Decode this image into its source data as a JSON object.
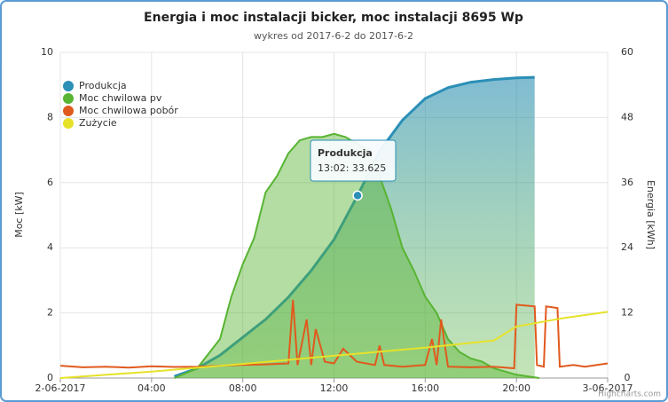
{
  "chart_data": {
    "type": "line",
    "title": "Energia i moc instalacji bicker, moc instalacji 8695 Wp",
    "subtitle": "wykres od 2017-6-2 do 2017-6-2",
    "y_label": "Moc [kW]",
    "y2_label": "Energia [kWh]",
    "xlim": [
      0,
      24
    ],
    "xticks": [
      {
        "value": 0,
        "label": "2-06-2017"
      },
      {
        "value": 4,
        "label": "04:00"
      },
      {
        "value": 8,
        "label": "08:00"
      },
      {
        "value": 12,
        "label": "12:00"
      },
      {
        "value": 16,
        "label": "16:00"
      },
      {
        "value": 20,
        "label": "20:00"
      },
      {
        "value": 24,
        "label": "3-06-2017"
      }
    ],
    "ylim": [
      0,
      10
    ],
    "yticks": [
      0,
      2,
      4,
      6,
      8,
      10
    ],
    "y2lim": [
      0,
      60
    ],
    "y2ticks": [
      0,
      12,
      24,
      36,
      48,
      60
    ],
    "grid": true,
    "legend": "top-left",
    "series": [
      {
        "name": "Produkcja",
        "color": "#2b8fb6",
        "axis": "y2",
        "area": true,
        "x": [
          5,
          6,
          7,
          8,
          9,
          10,
          11,
          12,
          13.0333,
          14,
          15,
          16,
          17,
          18,
          19,
          20,
          20.8
        ],
        "values": [
          0.3,
          1.8,
          4.2,
          7.5,
          10.8,
          14.9,
          19.8,
          25.5,
          33.625,
          41.8,
          47.5,
          51.5,
          53.5,
          54.5,
          55,
          55.3,
          55.4
        ]
      },
      {
        "name": "Moc chwilowa pv",
        "color": "#58b432",
        "axis": "y",
        "area": true,
        "x": [
          5,
          6,
          7,
          7.5,
          8,
          8.5,
          9,
          9.5,
          10,
          10.5,
          11,
          11.5,
          12,
          12.5,
          13,
          13.5,
          14,
          14.5,
          15,
          15.5,
          16,
          16.5,
          17,
          17.5,
          18,
          18.5,
          19,
          20,
          21
        ],
        "values": [
          0,
          0.3,
          1.2,
          2.5,
          3.5,
          4.3,
          5.7,
          6.2,
          6.9,
          7.3,
          7.4,
          7.4,
          7.5,
          7.4,
          7.2,
          7.0,
          6.2,
          5.2,
          4.0,
          3.3,
          2.5,
          2.0,
          1.2,
          0.8,
          0.6,
          0.5,
          0.3,
          0.1,
          0
        ]
      },
      {
        "name": "Moc chwilowa pobór",
        "color": "#e05a1e",
        "axis": "y",
        "x": [
          0,
          1,
          2,
          3,
          4,
          5,
          6,
          7,
          8,
          9,
          10,
          10.2,
          10.4,
          10.8,
          11,
          11.2,
          11.6,
          12,
          12.4,
          13,
          13.8,
          14,
          14.2,
          15,
          16,
          16.3,
          16.5,
          16.7,
          17,
          18,
          19,
          19.9,
          20,
          20.8,
          20.9,
          21.2,
          21.3,
          21.8,
          21.9,
          22.5,
          23,
          24
        ],
        "values": [
          0.38,
          0.33,
          0.35,
          0.32,
          0.36,
          0.34,
          0.35,
          0.38,
          0.4,
          0.42,
          0.45,
          2.4,
          0.4,
          1.8,
          0.4,
          1.5,
          0.5,
          0.45,
          0.9,
          0.5,
          0.4,
          1.0,
          0.4,
          0.35,
          0.4,
          1.2,
          0.4,
          1.8,
          0.35,
          0.33,
          0.35,
          0.3,
          2.25,
          2.2,
          0.4,
          0.35,
          2.2,
          2.15,
          0.35,
          0.4,
          0.35,
          0.45
        ]
      },
      {
        "name": "Zużycie",
        "color": "#e6e22a",
        "axis": "y2",
        "x": [
          0,
          4,
          8,
          12,
          16,
          19,
          20,
          22,
          24
        ],
        "values": [
          0,
          1.2,
          2.6,
          4.1,
          5.6,
          6.9,
          9.5,
          11,
          12.2
        ]
      }
    ],
    "tooltip": {
      "title": "Produkcja",
      "text": "13:02: 33.625"
    },
    "credits": "Highcharts.com"
  }
}
